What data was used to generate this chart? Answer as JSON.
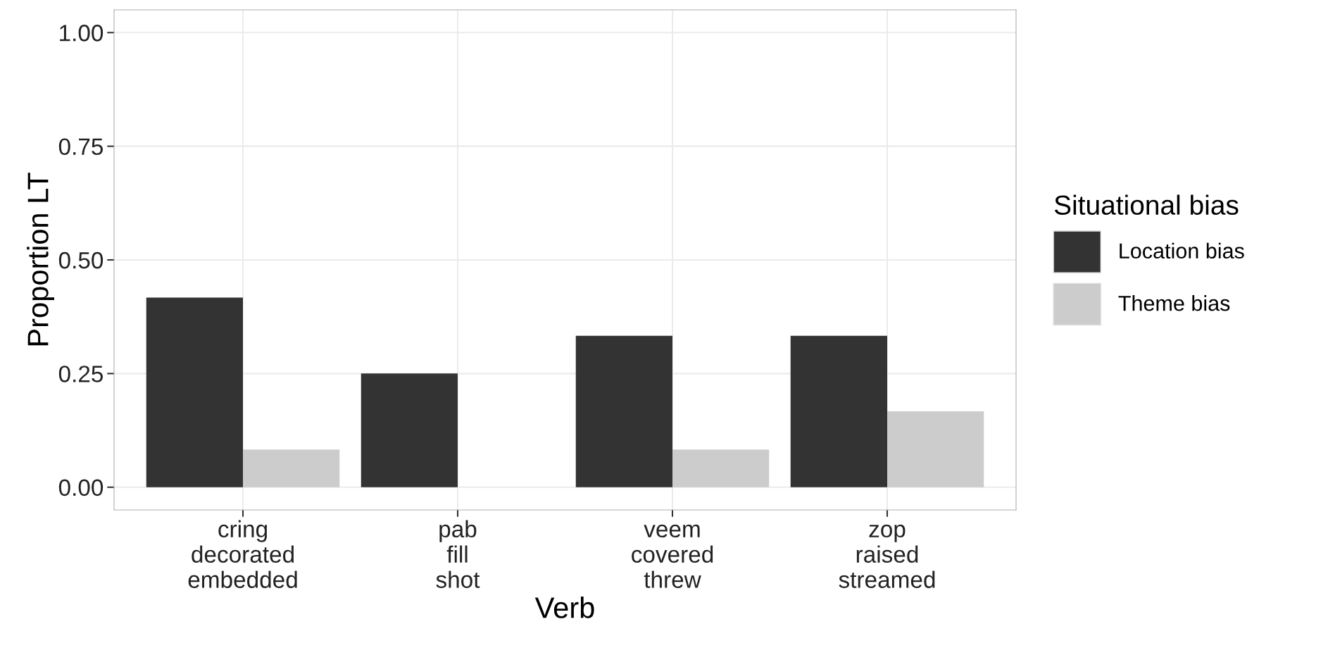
{
  "chart_data": {
    "type": "bar",
    "xlabel": "Verb",
    "ylabel": "Proportion LT",
    "legend_title": "Situational bias",
    "categories": [
      "cring\ndecorated\nembedded",
      "pab\nfill\nshot",
      "veem\ncovered\nthrew",
      "zop\nraised\nstreamed"
    ],
    "series": [
      {
        "name": "Location bias",
        "color": "#333333",
        "values": [
          0.417,
          0.25,
          0.333,
          0.333
        ]
      },
      {
        "name": "Theme bias",
        "color": "#cccccc",
        "values": [
          0.083,
          0.0,
          0.083,
          0.167
        ]
      }
    ],
    "ylim": [
      -0.05,
      1.05
    ],
    "yticks": [
      {
        "value": 0,
        "label": "0.00"
      },
      {
        "value": 0.25,
        "label": "0.25"
      },
      {
        "value": 0.5,
        "label": "0.50"
      },
      {
        "value": 0.75,
        "label": "0.75"
      },
      {
        "value": 1,
        "label": "1.00"
      }
    ],
    "grid": true,
    "legend": "right"
  }
}
